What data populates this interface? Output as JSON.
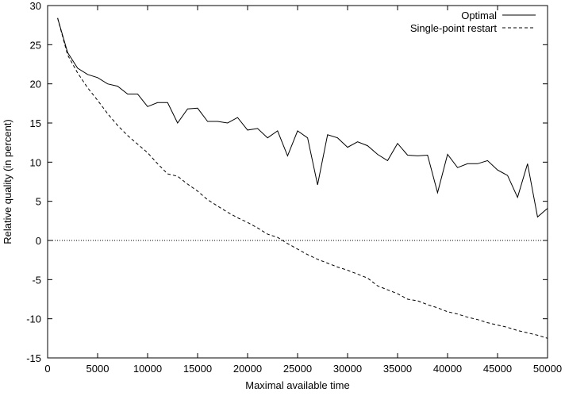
{
  "chart_data": {
    "type": "line",
    "xlabel": "Maximal available time",
    "ylabel": "Relative quality (in percent)",
    "xlim": [
      0,
      50000
    ],
    "ylim": [
      -15,
      30
    ],
    "xticks": [
      0,
      5000,
      10000,
      15000,
      20000,
      25000,
      30000,
      35000,
      40000,
      45000,
      50000
    ],
    "yticks": [
      -15,
      -10,
      -5,
      0,
      5,
      10,
      15,
      20,
      25,
      30
    ],
    "grid": false,
    "legend_position": "top-right",
    "reference_line": {
      "y": 0,
      "style": "dotted"
    },
    "series": [
      {
        "name": "Optimal",
        "style": "solid",
        "color": "#000000",
        "x": [
          1000,
          2000,
          3000,
          4000,
          5000,
          6000,
          7000,
          8000,
          9000,
          10000,
          11000,
          12000,
          13000,
          14000,
          15000,
          16000,
          17000,
          18000,
          19000,
          20000,
          21000,
          22000,
          23000,
          24000,
          25000,
          26000,
          27000,
          28000,
          29000,
          30000,
          31000,
          32000,
          33000,
          34000,
          35000,
          36000,
          37000,
          38000,
          39000,
          40000,
          41000,
          42000,
          43000,
          44000,
          45000,
          46000,
          47000,
          48000,
          49000,
          50000
        ],
        "y": [
          28.4,
          24.0,
          22.0,
          21.2,
          20.8,
          20.0,
          19.7,
          18.7,
          18.7,
          17.1,
          17.6,
          17.6,
          15.0,
          16.8,
          16.9,
          15.2,
          15.2,
          15.0,
          15.7,
          14.1,
          14.3,
          13.1,
          14.0,
          10.8,
          14.0,
          13.1,
          7.1,
          13.5,
          13.1,
          11.9,
          12.6,
          12.1,
          11.0,
          10.2,
          12.4,
          10.9,
          10.8,
          10.9,
          6.1,
          11.0,
          9.3,
          9.8,
          9.8,
          10.2,
          9.0,
          8.3,
          5.5,
          9.8,
          3.0,
          4.1
        ]
      },
      {
        "name": "Single-point restart",
        "style": "dashed",
        "color": "#000000",
        "x": [
          1000,
          2000,
          3000,
          4000,
          5000,
          6000,
          7000,
          8000,
          9000,
          10000,
          11000,
          12000,
          13000,
          14000,
          15000,
          16000,
          17000,
          18000,
          19000,
          20000,
          21000,
          22000,
          23000,
          24000,
          25000,
          26000,
          27000,
          28000,
          29000,
          30000,
          31000,
          32000,
          33000,
          34000,
          35000,
          36000,
          37000,
          38000,
          39000,
          40000,
          41000,
          42000,
          43000,
          44000,
          45000,
          46000,
          47000,
          48000,
          49000,
          50000
        ],
        "y": [
          28.4,
          23.7,
          21.4,
          19.5,
          17.9,
          16.2,
          14.7,
          13.4,
          12.3,
          11.2,
          9.8,
          8.5,
          8.2,
          7.2,
          6.3,
          5.2,
          4.4,
          3.6,
          2.9,
          2.3,
          1.6,
          0.8,
          0.4,
          -0.4,
          -1.1,
          -1.8,
          -2.4,
          -2.9,
          -3.4,
          -3.8,
          -4.3,
          -4.8,
          -5.8,
          -6.3,
          -6.8,
          -7.5,
          -7.7,
          -8.2,
          -8.6,
          -9.1,
          -9.4,
          -9.8,
          -10.1,
          -10.5,
          -10.8,
          -11.1,
          -11.5,
          -11.8,
          -12.1,
          -12.5
        ]
      }
    ]
  }
}
